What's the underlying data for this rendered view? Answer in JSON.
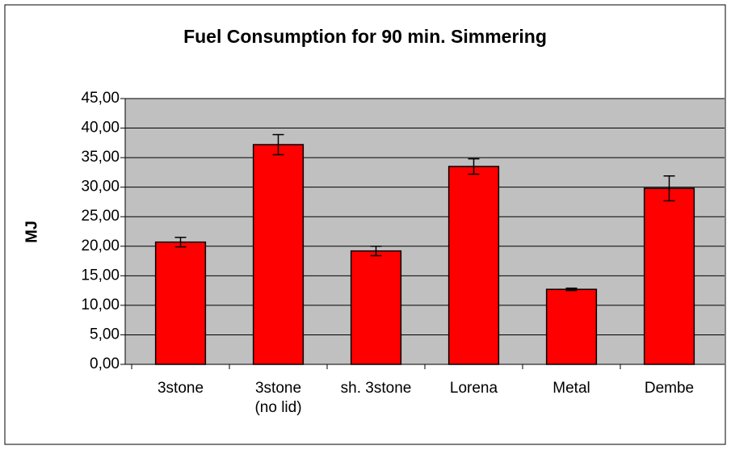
{
  "chart_data": {
    "type": "bar",
    "title": "Fuel Consumption for 90 min. Simmering",
    "y_label": "MJ",
    "categories": [
      "3stone",
      "3stone\n(no lid)",
      "sh. 3stone",
      "Lorena",
      "Metal",
      "Dembe"
    ],
    "values": [
      20.7,
      37.2,
      19.2,
      33.5,
      12.7,
      29.8
    ],
    "errors": [
      0.8,
      1.7,
      0.8,
      1.3,
      0.2,
      2.1
    ],
    "color": "#ff0000",
    "ylim": [
      0,
      45
    ],
    "yticks": [
      {
        "value": 0,
        "label": "0,00"
      },
      {
        "value": 5,
        "label": "5,00"
      },
      {
        "value": 10,
        "label": "10,00"
      },
      {
        "value": 15,
        "label": "15,00"
      },
      {
        "value": 20,
        "label": "20,00"
      },
      {
        "value": 25,
        "label": "25,00"
      },
      {
        "value": 30,
        "label": "30,00"
      },
      {
        "value": 35,
        "label": "35,00"
      },
      {
        "value": 40,
        "label": "40,00"
      },
      {
        "value": 45,
        "label": "45,00"
      }
    ],
    "grid": true
  }
}
